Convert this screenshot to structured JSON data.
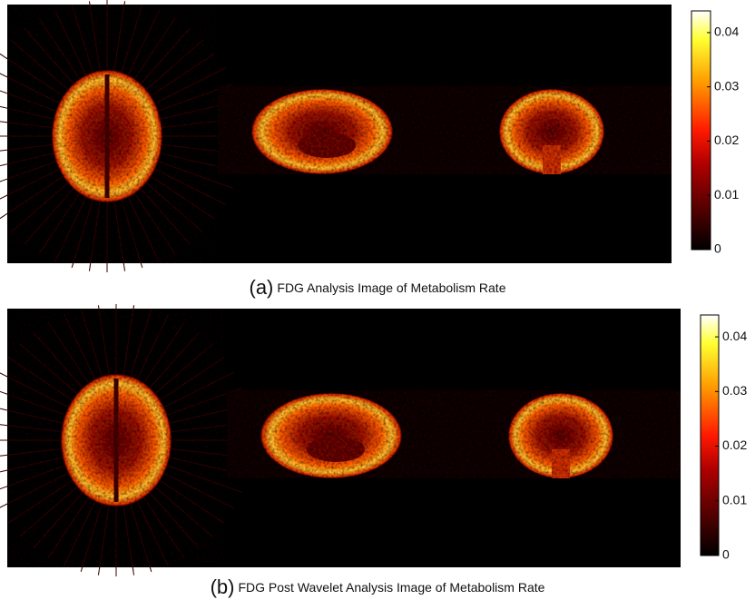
{
  "panels": [
    {
      "label": "(a)",
      "caption": "FDG Analysis Image of Metabolism Rate",
      "colorbar": {
        "lim": [
          0,
          0.044
        ],
        "ticks": [
          0,
          0.01,
          0.02,
          0.03,
          0.04
        ]
      }
    },
    {
      "label": "(b)",
      "caption": "FDG Post Wavelet Analysis Image of Metabolism Rate",
      "colorbar": {
        "lim": [
          0,
          0.044
        ],
        "ticks": [
          0,
          0.01,
          0.02,
          0.03,
          0.04
        ]
      }
    }
  ]
}
